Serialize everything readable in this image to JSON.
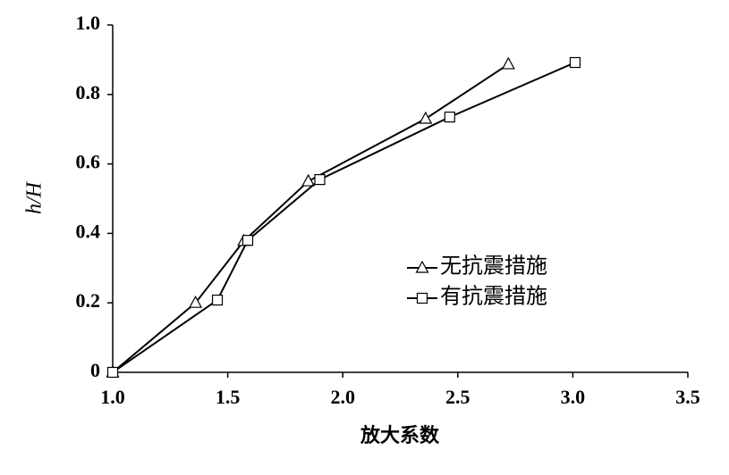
{
  "chart_data": {
    "type": "line",
    "x_label": "放大系数",
    "y_label": "h/H",
    "xlim": [
      1,
      3.5
    ],
    "ylim": [
      0,
      1
    ],
    "xticks": [
      {
        "value": 1,
        "label": "1.0"
      },
      1.5,
      {
        "value": 2,
        "label": "2.0"
      },
      2.5,
      {
        "value": 3,
        "label": "3.0"
      },
      3.5
    ],
    "yticks": [
      0,
      0.2,
      0.4,
      0.6,
      0.8,
      {
        "value": 1,
        "label": "1.0"
      }
    ],
    "legend": "right",
    "series": [
      {
        "name": "无抗震措施",
        "color": "#000000",
        "marker": "triangle",
        "x": [
          1.0,
          1.36,
          1.57,
          1.85,
          2.36,
          2.72
        ],
        "values": [
          0,
          0.2,
          0.378,
          0.55,
          0.73,
          0.887
        ]
      },
      {
        "name": "有抗震措施",
        "color": "#000000",
        "marker": "square",
        "x": [
          1.0,
          1.455,
          1.587,
          1.9,
          2.465,
          3.01
        ],
        "values": [
          0,
          0.208,
          0.38,
          0.555,
          0.735,
          0.892
        ]
      }
    ]
  }
}
